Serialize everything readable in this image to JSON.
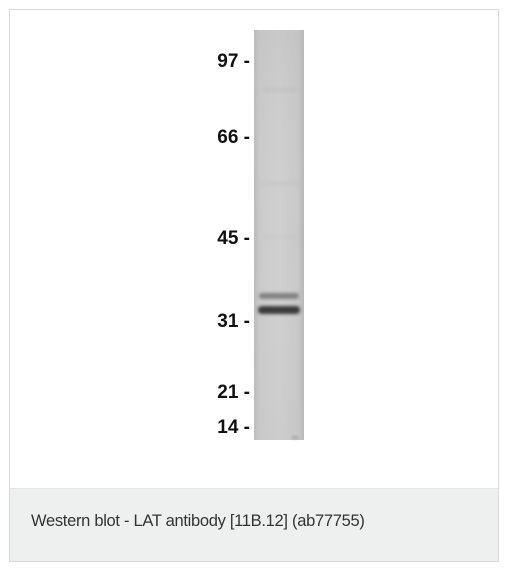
{
  "figure": {
    "markers": [
      {
        "label": "97 -",
        "kda": 97
      },
      {
        "label": "66 -",
        "kda": 66
      },
      {
        "label": "45 -",
        "kda": 45
      },
      {
        "label": "31 -",
        "kda": 31
      },
      {
        "label": "21 -",
        "kda": 21
      },
      {
        "label": "14 -",
        "kda": 14
      }
    ],
    "lane_color": "#c9c9c9",
    "band_color": "#3a3a3a"
  },
  "caption": {
    "text": "Western blot - LAT antibody [11B.12] (ab77755)"
  }
}
